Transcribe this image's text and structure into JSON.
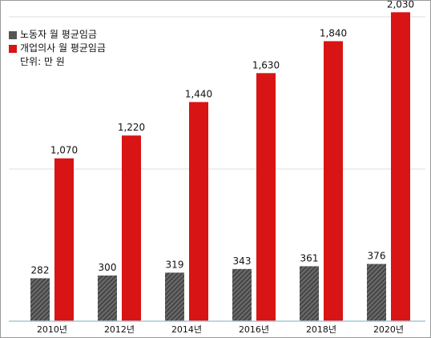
{
  "chart_data": {
    "type": "bar",
    "categories": [
      "2010년",
      "2012년",
      "2014년",
      "2016년",
      "2018년",
      "2020년"
    ],
    "series": [
      {
        "name": "노동자 월 평균임금",
        "values": [
          282,
          300,
          319,
          343,
          361,
          376
        ],
        "color": "#555555"
      },
      {
        "name": "개업의사 월 평균임금",
        "values": [
          1070,
          1220,
          1440,
          1630,
          1840,
          2030
        ],
        "color": "#d81414"
      }
    ],
    "unit_note": "단위: 만 원",
    "ylim": [
      0,
      2000
    ],
    "grid": true,
    "legend_position": "top-left"
  }
}
